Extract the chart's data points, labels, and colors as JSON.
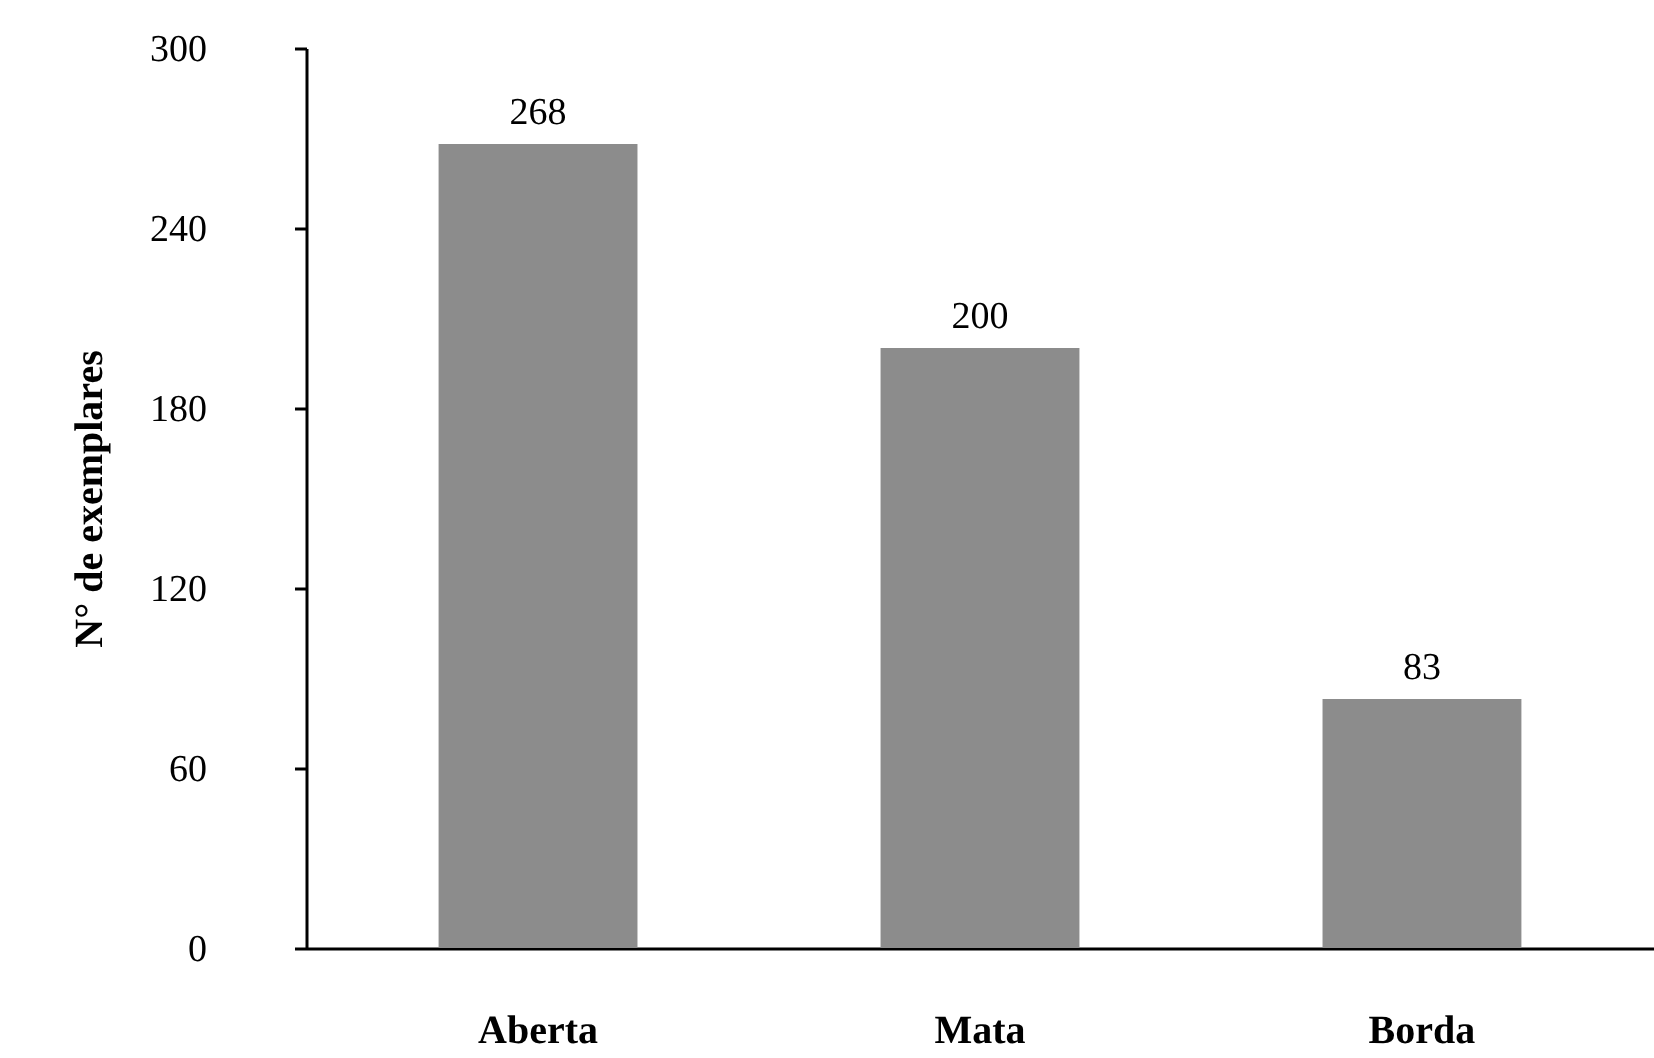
{
  "chart_data": {
    "type": "bar",
    "ylabel": "N° de exemplares",
    "categories": [
      "Aberta",
      "Mata",
      "Borda"
    ],
    "values": [
      268,
      200,
      83
    ],
    "color": "#8c8c8c",
    "ylim": [
      0,
      300
    ],
    "yticks": [
      0,
      60,
      120,
      180,
      240,
      300
    ],
    "data_labels": true,
    "grid": false
  }
}
